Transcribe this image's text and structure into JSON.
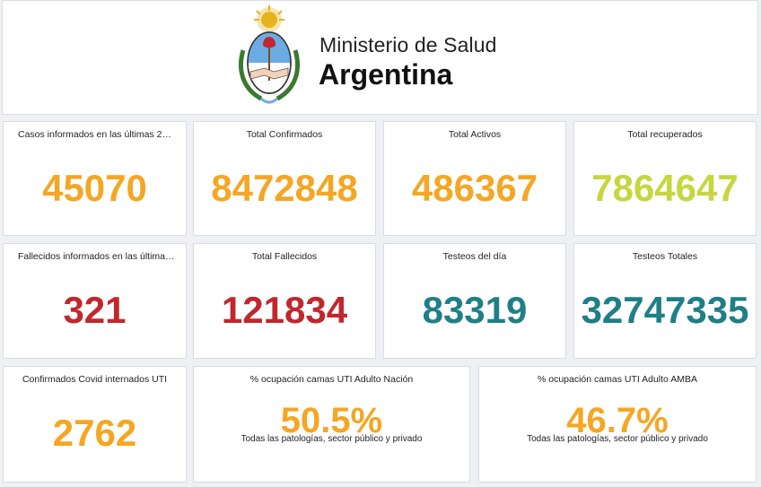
{
  "header": {
    "ministry": "Ministerio de Salud",
    "country": "Argentina",
    "logo_icon": "argentina-coat-of-arms-icon"
  },
  "colors": {
    "orange": "#f5a623",
    "green": "#c6d63f",
    "red": "#c1272d",
    "teal": "#1f7f86"
  },
  "cards": [
    {
      "title": "Casos informados en las últimas 2…",
      "value": "45070",
      "color": "orange"
    },
    {
      "title": "Total Confirmados",
      "value": "8472848",
      "color": "orange"
    },
    {
      "title": "Total Activos",
      "value": "486367",
      "color": "orange"
    },
    {
      "title": "Total recuperados",
      "value": "7864647",
      "color": "green"
    },
    {
      "title": "Fallecidos informados en las última…",
      "value": "321",
      "color": "red"
    },
    {
      "title": "Total Fallecidos",
      "value": "121834",
      "color": "red"
    },
    {
      "title": "Testeos del día",
      "value": "83319",
      "color": "teal"
    },
    {
      "title": "Testeos Totales",
      "value": "32747335",
      "color": "teal"
    },
    {
      "title": "Confirmados Covid internados UTI",
      "value": "2762",
      "color": "orange"
    },
    {
      "title": "% ocupación camas UTI Adulto Nación",
      "value": "50.5%",
      "subtitle": "Todas las patologías, sector público y privado",
      "color": "orange"
    },
    {
      "title": "% ocupación camas UTI Adulto AMBA",
      "value": "46.7%",
      "subtitle": "Todas las patologías, sector público y privado",
      "color": "orange"
    }
  ]
}
